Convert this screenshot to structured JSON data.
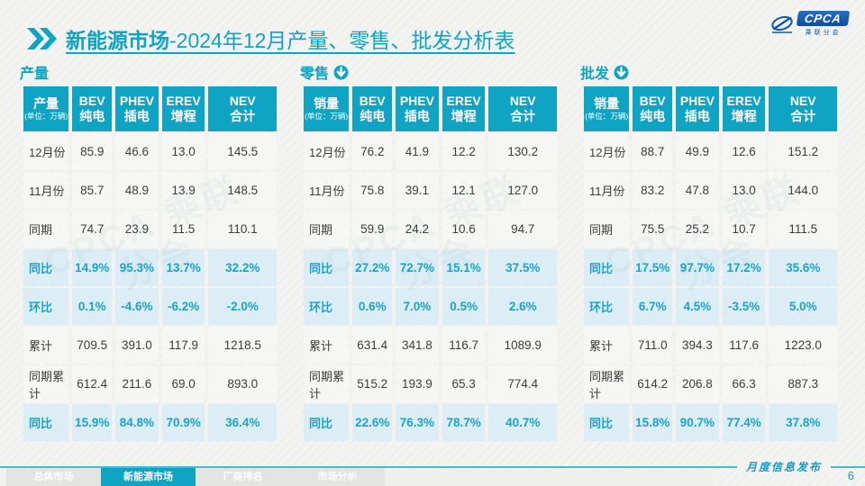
{
  "page": {
    "title_bold": "新能源市场",
    "title_rest": "-2024年12月产量、零售、批发分析表",
    "logo": {
      "text": "CPCA",
      "subtext": "乘联分会"
    },
    "footer": {
      "publication": "月度信息发布",
      "page_number": "6"
    },
    "nav_tabs": [
      {
        "label": "总体市场",
        "active": false
      },
      {
        "label": "新能源市场",
        "active": true
      },
      {
        "label": "厂商排名",
        "active": false
      },
      {
        "label": "市场分析",
        "active": false
      }
    ]
  },
  "tables_shared": {
    "unit": "(单位：万辆)",
    "columns": [
      {
        "en": "BEV",
        "zh": "纯电"
      },
      {
        "en": "PHEV",
        "zh": "插电"
      },
      {
        "en": "EREV",
        "zh": "增程"
      },
      {
        "en": "NEV",
        "zh": "合计"
      }
    ],
    "row_labels": [
      "12月份",
      "11月份",
      "同期",
      "同比",
      "环比",
      "累计",
      "同期累计",
      "同比"
    ],
    "highlight_rows": [
      3,
      4,
      7
    ],
    "watermark_text": "CPCA 乘联分会"
  },
  "tables": [
    {
      "section": "产量",
      "corner": "产量",
      "arrow_icon": false,
      "rows": [
        [
          "85.9",
          "46.6",
          "13.0",
          "145.5"
        ],
        [
          "85.7",
          "48.9",
          "13.9",
          "148.5"
        ],
        [
          "74.7",
          "23.9",
          "11.5",
          "110.1"
        ],
        [
          "14.9%",
          "95.3%",
          "13.7%",
          "32.2%"
        ],
        [
          "0.1%",
          "-4.6%",
          "-6.2%",
          "-2.0%"
        ],
        [
          "709.5",
          "391.0",
          "117.9",
          "1218.5"
        ],
        [
          "612.4",
          "211.6",
          "69.0",
          "893.0"
        ],
        [
          "15.9%",
          "84.8%",
          "70.9%",
          "36.4%"
        ]
      ]
    },
    {
      "section": "零售",
      "corner": "销量",
      "arrow_icon": true,
      "rows": [
        [
          "76.2",
          "41.9",
          "12.2",
          "130.2"
        ],
        [
          "75.8",
          "39.1",
          "12.1",
          "127.0"
        ],
        [
          "59.9",
          "24.2",
          "10.6",
          "94.7"
        ],
        [
          "27.2%",
          "72.7%",
          "15.1%",
          "37.5%"
        ],
        [
          "0.6%",
          "7.0%",
          "0.5%",
          "2.6%"
        ],
        [
          "631.4",
          "341.8",
          "116.7",
          "1089.9"
        ],
        [
          "515.2",
          "193.9",
          "65.3",
          "774.4"
        ],
        [
          "22.6%",
          "76.3%",
          "78.7%",
          "40.7%"
        ]
      ]
    },
    {
      "section": "批发",
      "corner": "销量",
      "arrow_icon": true,
      "rows": [
        [
          "88.7",
          "49.9",
          "12.6",
          "151.2"
        ],
        [
          "83.2",
          "47.8",
          "13.0",
          "144.0"
        ],
        [
          "75.5",
          "25.2",
          "10.7",
          "111.5"
        ],
        [
          "17.5%",
          "97.7%",
          "17.2%",
          "35.6%"
        ],
        [
          "6.7%",
          "4.5%",
          "-3.5%",
          "5.0%"
        ],
        [
          "711.0",
          "394.3",
          "117.6",
          "1223.0"
        ],
        [
          "614.2",
          "206.8",
          "66.3",
          "887.3"
        ],
        [
          "15.8%",
          "90.7%",
          "77.4%",
          "37.8%"
        ]
      ]
    }
  ],
  "colors": {
    "accent": "#0fa3c4",
    "highlight_bg": "#dcedf5",
    "highlight_text": "#1ba3cc",
    "logo_blue": "#1156a8"
  }
}
